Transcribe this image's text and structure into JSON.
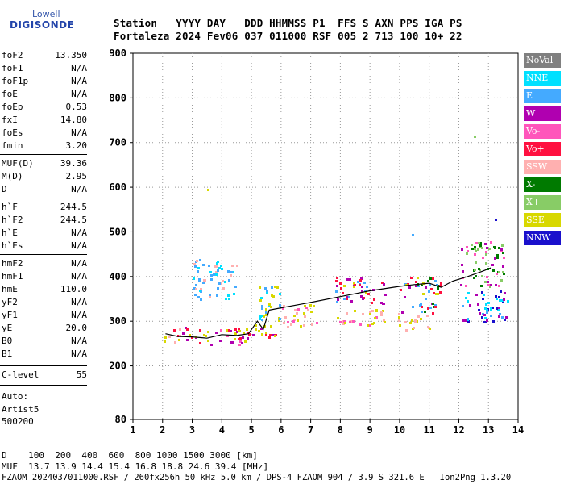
{
  "logo": {
    "line1": "Lowell",
    "line2": "DIGISONDE"
  },
  "header": {
    "row1": "Station   YYYY DAY   DDD HHMMSS P1  FFS S AXN PPS IGA PS",
    "row2": "Fortaleza 2024 Fev06 037 011000 RSF 005 2 713 100 10+ 22"
  },
  "params": [
    {
      "name": "foF2",
      "value": "13.350"
    },
    {
      "name": "foF1",
      "value": "N/A"
    },
    {
      "name": "foF1p",
      "value": "N/A"
    },
    {
      "name": "foE",
      "value": "N/A"
    },
    {
      "name": "foEp",
      "value": "0.53"
    },
    {
      "name": "fxI",
      "value": "14.80"
    },
    {
      "name": "foEs",
      "value": "N/A"
    },
    {
      "name": "fmin",
      "value": "3.20"
    },
    {
      "name": "MUF(D)",
      "value": "39.36"
    },
    {
      "name": "M(D)",
      "value": "2.95"
    },
    {
      "name": "D",
      "value": "N/A"
    },
    {
      "name": "h`F",
      "value": "244.5"
    },
    {
      "name": "h`F2",
      "value": "244.5"
    },
    {
      "name": "h`E",
      "value": "N/A"
    },
    {
      "name": "h`Es",
      "value": "N/A"
    },
    {
      "name": "hmF2",
      "value": "N/A"
    },
    {
      "name": "hmF1",
      "value": "N/A"
    },
    {
      "name": "hmE",
      "value": "110.0"
    },
    {
      "name": "yF2",
      "value": "N/A"
    },
    {
      "name": "yF1",
      "value": "N/A"
    },
    {
      "name": "yE",
      "value": "20.0"
    },
    {
      "name": "B0",
      "value": "N/A"
    },
    {
      "name": "B1",
      "value": "N/A"
    },
    {
      "name": "C-level",
      "value": "55"
    }
  ],
  "auto": {
    "l1": "Auto:",
    "l2": "Artist5",
    "l3": "500200"
  },
  "footer": {
    "dist": "D    100  200  400  600  800 1000 1500 3000 [km]",
    "muf": "MUF  13.7 13.9 14.4 15.4 16.8 18.8 24.6 39.4 [MHz]",
    "file": "FZAOM_2024037011000.RSF / 260fx256h 50 kHz 5.0 km / DPS-4 FZAOM 904 / 3.9 S 321.6 E   Ion2Png 1.3.20"
  },
  "legend": [
    {
      "label": "NoVal",
      "color": "#808080",
      "text": "#ffffff"
    },
    {
      "label": "NNE",
      "color": "#00e0ff",
      "text": "#ffffff"
    },
    {
      "label": "E",
      "color": "#44aaff",
      "text": "#ffffff"
    },
    {
      "label": "W",
      "color": "#b000b0",
      "text": "#ffffff"
    },
    {
      "label": "Vo-",
      "color": "#ff55bb",
      "text": "#ffffff"
    },
    {
      "label": "Vo+",
      "color": "#ff1040",
      "text": "#ffffff"
    },
    {
      "label": "SSW",
      "color": "#ffb0b0",
      "text": "#ffffff"
    },
    {
      "label": "X-",
      "color": "#007a00",
      "text": "#ffffff"
    },
    {
      "label": "X+",
      "color": "#88cc66",
      "text": "#ffffff"
    },
    {
      "label": "SSE",
      "color": "#d8d800",
      "text": "#ffffff"
    },
    {
      "label": "NNW",
      "color": "#1a10cc",
      "text": "#ffffff"
    }
  ],
  "chart_data": {
    "type": "scatter",
    "xlim": [
      1,
      14
    ],
    "ylim": [
      80,
      900
    ],
    "xticks": [
      1,
      2,
      3,
      4,
      5,
      6,
      7,
      8,
      9,
      10,
      11,
      12,
      13,
      14
    ],
    "yticks": [
      80,
      200,
      300,
      400,
      500,
      600,
      700,
      800,
      900
    ],
    "grid": true,
    "trace_line": {
      "x": [
        2.1,
        2.5,
        3.0,
        3.5,
        4.0,
        4.5,
        4.9,
        5.2,
        5.4,
        5.6,
        6.0,
        7.0,
        8.0,
        9.0,
        10.0,
        10.5,
        11.0,
        11.4,
        11.8,
        12.3,
        12.8,
        13.1
      ],
      "y": [
        272,
        266,
        265,
        262,
        270,
        268,
        272,
        300,
        282,
        325,
        330,
        342,
        355,
        368,
        378,
        382,
        385,
        376,
        390,
        400,
        412,
        420
      ]
    },
    "clusters": [
      {
        "x": [
          2.0,
          3.0
        ],
        "y": [
          255,
          290
        ],
        "colors": [
          "SSE",
          "W",
          "Vo+",
          "SSW"
        ]
      },
      {
        "x": [
          3.0,
          4.8
        ],
        "y": [
          250,
          285
        ],
        "colors": [
          "SSE",
          "W",
          "Vo-",
          "Vo+"
        ]
      },
      {
        "x": [
          3.0,
          4.5
        ],
        "y": [
          350,
          440
        ],
        "colors": [
          "E",
          "NNE",
          "SSW"
        ]
      },
      {
        "x": [
          4.4,
          5.8
        ],
        "y": [
          260,
          300
        ],
        "colors": [
          "SSE",
          "Vo+",
          "W"
        ]
      },
      {
        "x": [
          5.2,
          6.0
        ],
        "y": [
          300,
          380
        ],
        "colors": [
          "E",
          "SSE",
          "NNE"
        ]
      },
      {
        "x": [
          6.0,
          7.2
        ],
        "y": [
          290,
          340
        ],
        "colors": [
          "SSE",
          "SSW",
          "Vo-"
        ]
      },
      {
        "x": [
          7.8,
          9.5
        ],
        "y": [
          290,
          330
        ],
        "colors": [
          "SSE",
          "SSW",
          "Vo-"
        ]
      },
      {
        "x": [
          7.8,
          9.5
        ],
        "y": [
          340,
          400
        ],
        "colors": [
          "W",
          "SSE",
          "Vo+",
          "E"
        ]
      },
      {
        "x": [
          9.9,
          11.0
        ],
        "y": [
          280,
          320
        ],
        "colors": [
          "SSW",
          "SSE"
        ]
      },
      {
        "x": [
          10.0,
          11.4
        ],
        "y": [
          320,
          400
        ],
        "colors": [
          "E",
          "W",
          "SSE",
          "Vo+",
          "X-"
        ]
      },
      {
        "x": [
          12.0,
          13.7
        ],
        "y": [
          300,
          370
        ],
        "colors": [
          "NNW",
          "E",
          "NNE",
          "W"
        ]
      },
      {
        "x": [
          12.0,
          13.5
        ],
        "y": [
          380,
          480
        ],
        "colors": [
          "X-",
          "X+",
          "Vo-",
          "W"
        ]
      }
    ],
    "outliers": [
      {
        "x": 3.5,
        "y": 597,
        "color": "SSE"
      },
      {
        "x": 12.5,
        "y": 715,
        "color": "X+"
      },
      {
        "x": 13.2,
        "y": 530,
        "color": "NNW"
      },
      {
        "x": 10.4,
        "y": 495,
        "color": "E"
      }
    ]
  }
}
